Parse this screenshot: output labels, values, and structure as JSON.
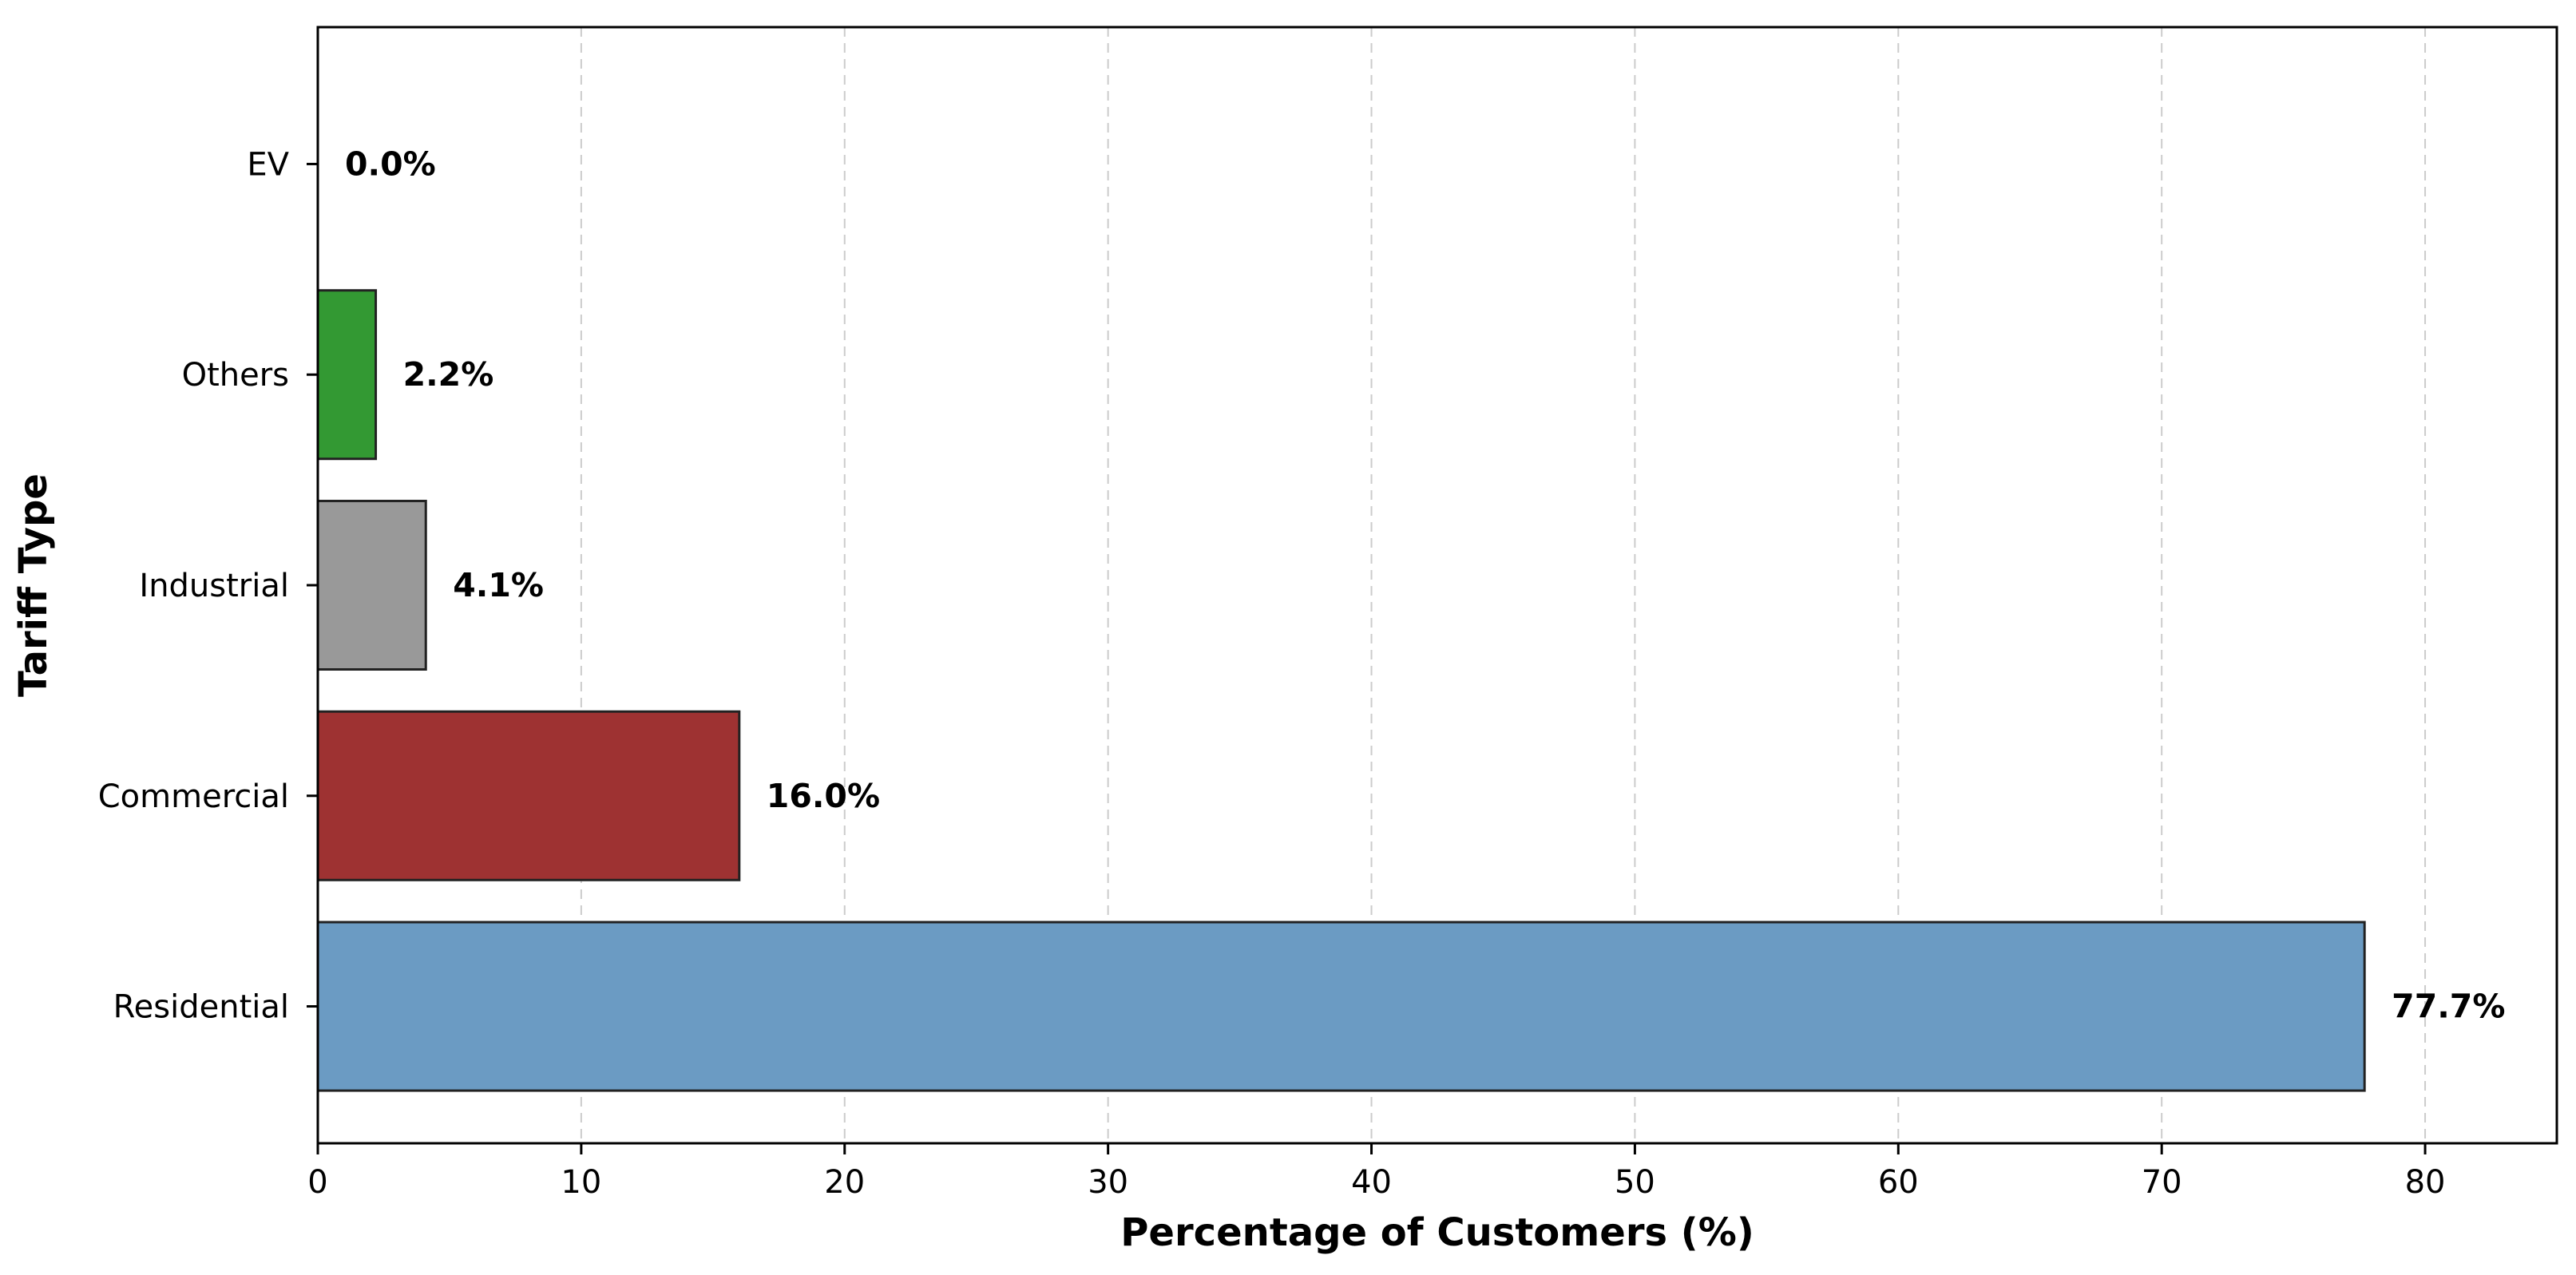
{
  "chart_data": {
    "type": "bar",
    "orientation": "horizontal",
    "title": "",
    "xlabel": "Percentage of Customers (%)",
    "ylabel": "Tariff Type",
    "xlim": [
      0,
      85
    ],
    "xticks": [
      0,
      10,
      20,
      30,
      40,
      50,
      60,
      70,
      80
    ],
    "grid": "x-dashed",
    "categories": [
      "Residential",
      "Commercial",
      "Industrial",
      "Others",
      "EV"
    ],
    "values": [
      77.7,
      16.0,
      4.1,
      2.2,
      0.0
    ],
    "value_labels": [
      "77.7%",
      "16.0%",
      "4.1%",
      "2.2%",
      "0.0%"
    ],
    "colors": [
      "#6b9bc3",
      "#9e3232",
      "#999999",
      "#339933",
      "#ffffff"
    ]
  }
}
